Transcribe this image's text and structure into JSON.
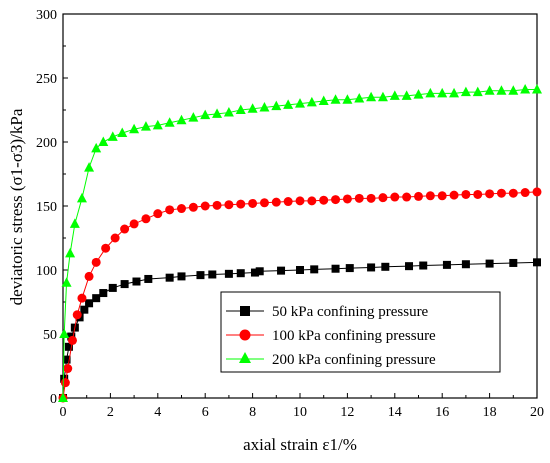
{
  "chart_data": {
    "type": "line",
    "xlabel": "axial strain ε1/%",
    "ylabel": "deviatoric stress (σ1-σ3)/kPa",
    "xlim": [
      0,
      20
    ],
    "ylim": [
      0,
      300
    ],
    "xticks": [
      0,
      2,
      4,
      6,
      8,
      10,
      12,
      14,
      16,
      18,
      20
    ],
    "yticks": [
      0,
      50,
      100,
      150,
      200,
      250,
      300
    ],
    "grid": false,
    "legend_position": "lower-right",
    "series": [
      {
        "name": "50 kPa confining pressure",
        "color": "#000000",
        "marker": "square",
        "x": [
          0,
          0.05,
          0.15,
          0.25,
          0.35,
          0.5,
          0.7,
          0.9,
          1.1,
          1.4,
          1.7,
          2.1,
          2.6,
          3.1,
          3.6,
          4.5,
          5.0,
          5.8,
          6.3,
          7.0,
          7.5,
          8.1,
          8.3,
          9.2,
          10.0,
          10.6,
          11.5,
          12.1,
          13.0,
          13.6,
          14.6,
          15.2,
          16.2,
          17.0,
          18.0,
          19.0,
          20.0
        ],
        "y": [
          0,
          15,
          30,
          40,
          48,
          55,
          63,
          69,
          74,
          78,
          82,
          86,
          89,
          91,
          93,
          94,
          95,
          96,
          96.5,
          97,
          97.5,
          98,
          99,
          99.5,
          100,
          100.5,
          101,
          101.5,
          102,
          102.5,
          103,
          103.5,
          104,
          104.5,
          105,
          105.5,
          106
        ]
      },
      {
        "name": "100 kPa confining pressure",
        "color": "#ff0000",
        "marker": "circle",
        "x": [
          0,
          0.1,
          0.2,
          0.4,
          0.6,
          0.8,
          1.1,
          1.4,
          1.8,
          2.2,
          2.6,
          3.0,
          3.5,
          4.0,
          4.5,
          5.0,
          5.5,
          6.0,
          6.5,
          7.0,
          7.5,
          8.0,
          8.5,
          9.0,
          9.5,
          10.0,
          10.5,
          11.0,
          11.5,
          12.0,
          12.5,
          13.0,
          13.5,
          14.0,
          14.5,
          15.0,
          15.5,
          16.0,
          16.5,
          17.0,
          17.5,
          18.0,
          18.5,
          19.0,
          19.5,
          20.0
        ],
        "y": [
          0,
          12,
          23,
          45,
          65,
          78,
          95,
          106,
          117,
          125,
          132,
          136,
          140,
          144,
          147,
          148,
          149,
          150,
          150.5,
          151,
          151.5,
          152,
          152.5,
          153,
          153.5,
          154,
          154,
          154.5,
          155,
          155.5,
          156,
          156,
          156.5,
          157,
          157,
          157.5,
          158,
          158,
          158.5,
          159,
          159,
          159.5,
          160,
          160,
          160.5,
          161
        ]
      },
      {
        "name": "200 kPa confining pressure",
        "color": "#00ff00",
        "marker": "triangle",
        "x": [
          0,
          0.05,
          0.15,
          0.3,
          0.5,
          0.8,
          1.1,
          1.4,
          1.7,
          2.1,
          2.5,
          3.0,
          3.5,
          4.0,
          4.5,
          5.0,
          5.5,
          6.0,
          6.5,
          7.0,
          7.5,
          8.0,
          8.5,
          9.0,
          9.5,
          10.0,
          10.5,
          11.0,
          11.5,
          12.0,
          12.5,
          13.0,
          13.5,
          14.0,
          14.5,
          15.0,
          15.5,
          16.0,
          16.5,
          17.0,
          17.5,
          18.0,
          18.5,
          19.0,
          19.5,
          20.0
        ],
        "y": [
          0,
          50,
          90,
          113,
          136,
          156,
          180,
          195,
          200,
          204,
          207,
          210,
          212,
          213,
          215,
          217,
          219,
          221,
          222,
          223,
          225,
          226,
          227,
          228,
          229,
          230,
          231,
          232,
          233,
          233,
          234,
          235,
          235,
          236,
          236,
          237,
          238,
          238,
          238,
          239,
          239,
          240,
          240,
          240,
          241,
          241
        ]
      }
    ]
  }
}
